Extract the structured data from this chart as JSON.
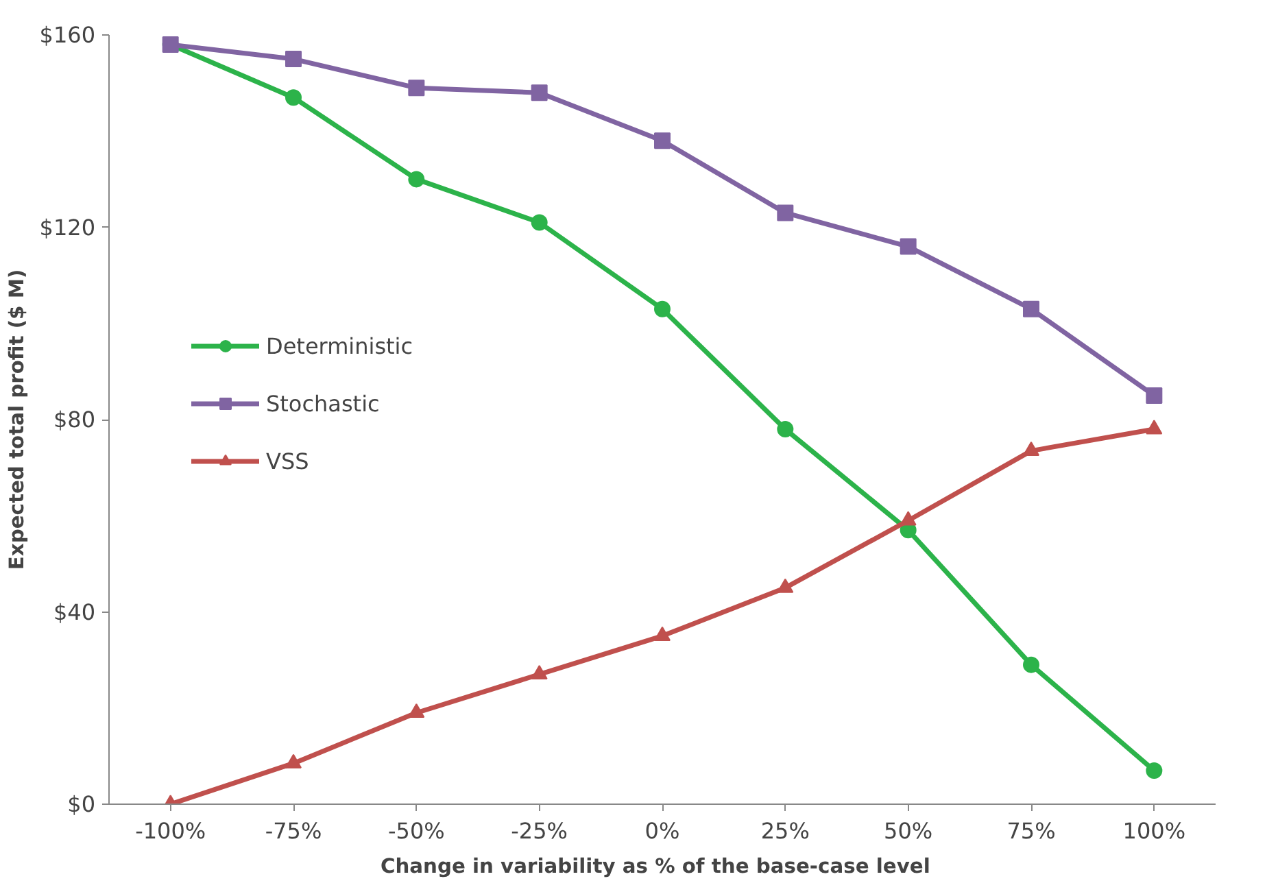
{
  "chart_data": {
    "type": "line",
    "xlabel": "Change in variability  as % of the base-case  level",
    "ylabel": "Expected total profit ($ M)",
    "categories": [
      "-100%",
      "-75%",
      "-50%",
      "-25%",
      "0%",
      "25%",
      "50%",
      "75%",
      "100%"
    ],
    "series": [
      {
        "name": "Deterministic",
        "color": "#2cb34a",
        "marker": "circle",
        "values": [
          158,
          147,
          130,
          121,
          103,
          78,
          57,
          29,
          7
        ]
      },
      {
        "name": "Stochastic",
        "color": "#8064a2",
        "marker": "square",
        "values": [
          158,
          155,
          149,
          148,
          138,
          123,
          116,
          103,
          85
        ]
      },
      {
        "name": "VSS",
        "color": "#c0504d",
        "marker": "triangle",
        "values": [
          0,
          8.5,
          19,
          27,
          35,
          45,
          59,
          73.5,
          78
        ]
      }
    ],
    "ylim": [
      0,
      160
    ],
    "yticks": [
      {
        "value": 0,
        "label": "$0"
      },
      {
        "value": 40,
        "label": "$40"
      },
      {
        "value": 80,
        "label": "$80"
      },
      {
        "value": 120,
        "label": "$120"
      },
      {
        "value": 160,
        "label": "$160"
      }
    ],
    "grid": false,
    "legend": "left",
    "line_style": "solid"
  }
}
